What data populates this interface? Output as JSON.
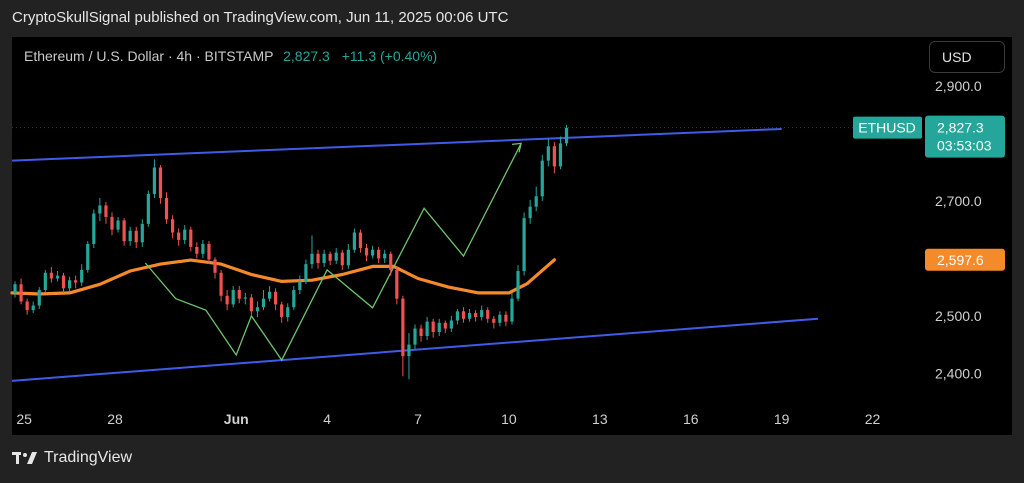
{
  "publish_line": "CryptoSkullSignal published on TradingView.com, Jun 11, 2025 00:06 UTC",
  "header": {
    "symbol": "Ethereum / U.S. Dollar · 4h · BITSTAMP",
    "price": "2,827.3",
    "change": "+11.3 (+0.40%)"
  },
  "currency_button": "USD",
  "brand": {
    "name": "TradingView"
  },
  "colors": {
    "up": "#26a69a",
    "down": "#ef5350",
    "channel": "#3f5be8",
    "ma": "#f58a2a",
    "projection": "#6ec36e"
  },
  "chart_data": {
    "type": "line",
    "symbol": "ETHUSD",
    "timeframe": "4h",
    "y_axis": {
      "ticks": [
        "2,900.0",
        "2,700.0",
        "2,500.0",
        "2,400.0"
      ],
      "tick_values": [
        2900,
        2700,
        2500,
        2400
      ],
      "range": [
        2345,
        2985
      ]
    },
    "x_axis": {
      "ticks": [
        "25",
        "28",
        "Jun",
        "4",
        "7",
        "10",
        "13",
        "16",
        "19",
        "22"
      ],
      "tick_days": [
        25,
        28,
        32,
        35,
        38,
        41,
        44,
        47,
        50,
        53
      ],
      "range_days": [
        24.6,
        54.5
      ],
      "note": "days counted from May 1 2025; Jun 1 = 32"
    },
    "last_price_label": {
      "name": "ETHUSD",
      "value": "2,827.3",
      "countdown": "03:53:03"
    },
    "ma_label": {
      "value": "2,597.6"
    },
    "channel": {
      "upper": [
        [
          24.6,
          2770
        ],
        [
          50.0,
          2825
        ]
      ],
      "lower": [
        [
          24.6,
          2387
        ],
        [
          51.2,
          2495
        ]
      ]
    },
    "moving_average": [
      [
        24.6,
        2540
      ],
      [
        25.5,
        2538
      ],
      [
        26.5,
        2540
      ],
      [
        27.5,
        2555
      ],
      [
        28.5,
        2578
      ],
      [
        29.5,
        2590
      ],
      [
        30.5,
        2597
      ],
      [
        31.5,
        2590
      ],
      [
        32.5,
        2572
      ],
      [
        33.5,
        2560
      ],
      [
        34.5,
        2562
      ],
      [
        35.5,
        2572
      ],
      [
        36.5,
        2586
      ],
      [
        37.2,
        2586
      ],
      [
        38.0,
        2565
      ],
      [
        39.0,
        2550
      ],
      [
        40.0,
        2540
      ],
      [
        41.0,
        2540
      ],
      [
        41.6,
        2556
      ],
      [
        42.5,
        2597.6
      ]
    ],
    "projection_path": [
      [
        29.0,
        2592
      ],
      [
        30.0,
        2530
      ],
      [
        31.0,
        2510
      ],
      [
        32.0,
        2432
      ],
      [
        32.5,
        2500
      ],
      [
        33.5,
        2423
      ],
      [
        35.0,
        2580
      ],
      [
        36.5,
        2514
      ],
      [
        38.2,
        2687
      ],
      [
        39.5,
        2604
      ],
      [
        41.4,
        2800
      ]
    ],
    "candles": [
      [
        24.7,
        2540,
        2555,
        2560,
        2532
      ],
      [
        24.9,
        2555,
        2525,
        2565,
        2520
      ],
      [
        25.1,
        2525,
        2510,
        2530,
        2502
      ],
      [
        25.3,
        2510,
        2518,
        2525,
        2505
      ],
      [
        25.5,
        2518,
        2545,
        2550,
        2512
      ],
      [
        25.7,
        2545,
        2575,
        2580,
        2540
      ],
      [
        25.9,
        2575,
        2565,
        2585,
        2558
      ],
      [
        26.1,
        2565,
        2570,
        2578,
        2560
      ],
      [
        26.3,
        2570,
        2548,
        2575,
        2540
      ],
      [
        26.5,
        2548,
        2562,
        2568,
        2542
      ],
      [
        26.7,
        2562,
        2558,
        2570,
        2548
      ],
      [
        26.9,
        2558,
        2580,
        2590,
        2552
      ],
      [
        27.1,
        2580,
        2625,
        2630,
        2575
      ],
      [
        27.3,
        2625,
        2678,
        2685,
        2618
      ],
      [
        27.5,
        2678,
        2692,
        2705,
        2665
      ],
      [
        27.7,
        2692,
        2672,
        2698,
        2660
      ],
      [
        27.9,
        2672,
        2650,
        2680,
        2640
      ],
      [
        28.1,
        2650,
        2666,
        2672,
        2645
      ],
      [
        28.3,
        2666,
        2630,
        2670,
        2622
      ],
      [
        28.5,
        2630,
        2648,
        2655,
        2622
      ],
      [
        28.7,
        2648,
        2628,
        2655,
        2618
      ],
      [
        28.9,
        2628,
        2660,
        2668,
        2620
      ],
      [
        29.1,
        2660,
        2712,
        2718,
        2655
      ],
      [
        29.3,
        2712,
        2758,
        2772,
        2705
      ],
      [
        29.5,
        2758,
        2705,
        2762,
        2695
      ],
      [
        29.7,
        2705,
        2668,
        2715,
        2660
      ],
      [
        29.9,
        2668,
        2645,
        2675,
        2635
      ],
      [
        30.1,
        2645,
        2632,
        2652,
        2622
      ],
      [
        30.3,
        2632,
        2650,
        2658,
        2625
      ],
      [
        30.5,
        2650,
        2620,
        2655,
        2612
      ],
      [
        30.7,
        2620,
        2608,
        2628,
        2600
      ],
      [
        30.9,
        2608,
        2625,
        2632,
        2600
      ],
      [
        31.1,
        2625,
        2598,
        2630,
        2590
      ],
      [
        31.3,
        2598,
        2575,
        2602,
        2565
      ],
      [
        31.5,
        2575,
        2535,
        2580,
        2525
      ],
      [
        31.7,
        2535,
        2520,
        2545,
        2510
      ],
      [
        31.9,
        2520,
        2545,
        2552,
        2515
      ],
      [
        32.1,
        2545,
        2530,
        2552,
        2522
      ],
      [
        32.3,
        2530,
        2532,
        2540,
        2520
      ],
      [
        32.5,
        2532,
        2508,
        2538,
        2500
      ],
      [
        32.7,
        2508,
        2515,
        2525,
        2498
      ],
      [
        32.9,
        2515,
        2530,
        2545,
        2510
      ],
      [
        33.1,
        2530,
        2542,
        2552,
        2525
      ],
      [
        33.3,
        2542,
        2520,
        2548,
        2510
      ],
      [
        33.5,
        2520,
        2498,
        2525,
        2488
      ],
      [
        33.7,
        2498,
        2515,
        2522,
        2490
      ],
      [
        33.9,
        2515,
        2545,
        2552,
        2510
      ],
      [
        34.1,
        2545,
        2560,
        2570,
        2538
      ],
      [
        34.3,
        2560,
        2590,
        2598,
        2555
      ],
      [
        34.5,
        2590,
        2608,
        2640,
        2582
      ],
      [
        34.7,
        2608,
        2592,
        2615,
        2582
      ],
      [
        34.9,
        2592,
        2608,
        2615,
        2585
      ],
      [
        35.1,
        2608,
        2596,
        2612,
        2588
      ],
      [
        35.3,
        2596,
        2610,
        2618,
        2590
      ],
      [
        35.5,
        2610,
        2588,
        2615,
        2580
      ],
      [
        35.7,
        2588,
        2615,
        2625,
        2582
      ],
      [
        35.9,
        2615,
        2645,
        2652,
        2610
      ],
      [
        36.1,
        2645,
        2618,
        2650,
        2610
      ],
      [
        36.3,
        2618,
        2605,
        2625,
        2595
      ],
      [
        36.5,
        2605,
        2615,
        2622,
        2600
      ],
      [
        36.7,
        2615,
        2600,
        2620,
        2592
      ],
      [
        36.9,
        2600,
        2608,
        2615,
        2592
      ],
      [
        37.1,
        2608,
        2580,
        2612,
        2570
      ],
      [
        37.3,
        2580,
        2530,
        2585,
        2520
      ],
      [
        37.5,
        2530,
        2430,
        2535,
        2395
      ],
      [
        37.7,
        2430,
        2450,
        2470,
        2390
      ],
      [
        37.9,
        2450,
        2478,
        2485,
        2442
      ],
      [
        38.1,
        2478,
        2465,
        2485,
        2455
      ],
      [
        38.3,
        2465,
        2490,
        2498,
        2458
      ],
      [
        38.5,
        2490,
        2472,
        2495,
        2462
      ],
      [
        38.7,
        2472,
        2488,
        2495,
        2465
      ],
      [
        38.9,
        2488,
        2478,
        2492,
        2470
      ],
      [
        39.1,
        2478,
        2492,
        2500,
        2472
      ],
      [
        39.3,
        2492,
        2508,
        2512,
        2485
      ],
      [
        39.5,
        2508,
        2495,
        2515,
        2488
      ],
      [
        39.7,
        2495,
        2505,
        2512,
        2490
      ],
      [
        39.9,
        2505,
        2498,
        2510,
        2490
      ],
      [
        40.1,
        2498,
        2510,
        2518,
        2492
      ],
      [
        40.3,
        2510,
        2495,
        2515,
        2488
      ],
      [
        40.5,
        2495,
        2488,
        2500,
        2478
      ],
      [
        40.7,
        2488,
        2502,
        2508,
        2482
      ],
      [
        40.9,
        2502,
        2490,
        2508,
        2482
      ],
      [
        41.1,
        2490,
        2530,
        2540,
        2485
      ],
      [
        41.3,
        2530,
        2578,
        2588,
        2525
      ],
      [
        41.5,
        2578,
        2670,
        2680,
        2570
      ],
      [
        41.7,
        2670,
        2690,
        2702,
        2660
      ],
      [
        41.9,
        2690,
        2708,
        2725,
        2682
      ],
      [
        42.1,
        2708,
        2770,
        2780,
        2700
      ],
      [
        42.3,
        2770,
        2795,
        2808,
        2760
      ],
      [
        42.5,
        2795,
        2760,
        2802,
        2748
      ],
      [
        42.7,
        2760,
        2800,
        2812,
        2755
      ],
      [
        42.9,
        2800,
        2827,
        2832,
        2795
      ]
    ]
  }
}
